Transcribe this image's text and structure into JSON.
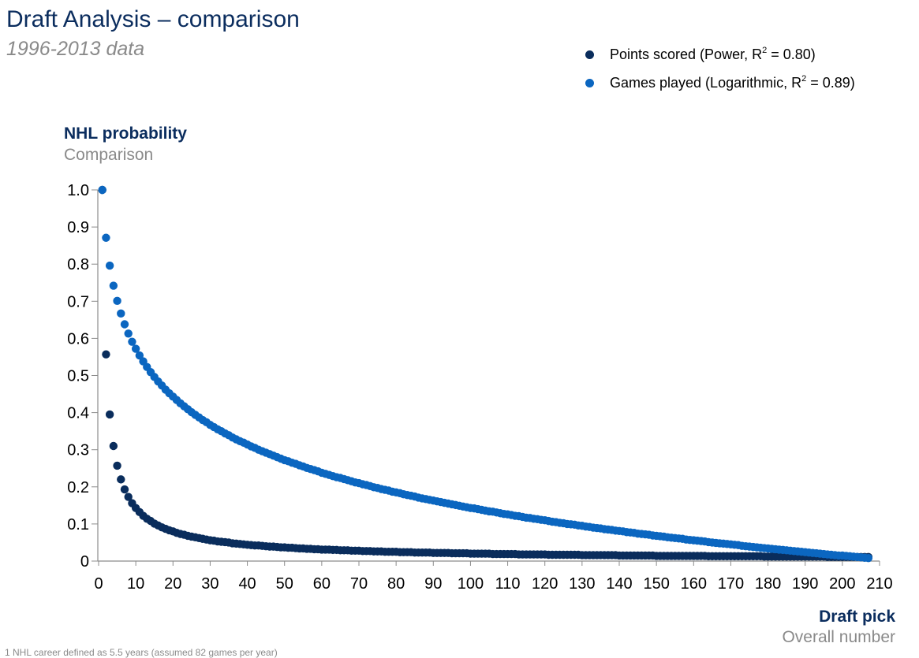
{
  "header": {
    "title": "Draft Analysis – comparison",
    "subtitle": "1996-2013 data"
  },
  "footnote": "1 NHL career defined as 5.5 years (assumed 82 games per year)",
  "colors": {
    "points_scored": "#0a2d5c",
    "games_played": "#0b66c0",
    "title": "#0b2d5e",
    "muted": "#8a8a8a"
  },
  "chart_data": {
    "type": "scatter",
    "title": "Draft Analysis – comparison",
    "subtitle": "1996-2013 data",
    "ylabel": "NHL probability",
    "ylabel_sub": "Comparison",
    "xlabel": "Draft pick",
    "xlabel_sub": "Overall number",
    "xlim": [
      0,
      210
    ],
    "ylim": [
      0,
      1.0
    ],
    "xticks": [
      "0",
      "10",
      "20",
      "30",
      "40",
      "50",
      "60",
      "70",
      "80",
      "90",
      "100",
      "110",
      "120",
      "130",
      "140",
      "150",
      "160",
      "170",
      "180",
      "190",
      "200",
      "210"
    ],
    "yticks": [
      "0",
      "0.1",
      "0.2",
      "0.3",
      "0.4",
      "0.5",
      "0.6",
      "0.7",
      "0.8",
      "0.9",
      "1.0"
    ],
    "grid": false,
    "legend_placement": "top-right",
    "legend": [
      {
        "label": "Points scored (Power, R",
        "sup": "2",
        "tail": " = 0.80)"
      },
      {
        "label": "Games played (Logarithmic, R",
        "sup": "2",
        "tail": " = 0.89)"
      }
    ],
    "x_start": 1,
    "series": [
      {
        "name": "Points scored (Power, R2 = 0.80)",
        "color": "#0a2d5c",
        "values": [
          1.0,
          0.557,
          0.395,
          0.31,
          0.257,
          0.22,
          0.193,
          0.173,
          0.156,
          0.143,
          0.132,
          0.122,
          0.114,
          0.108,
          0.101,
          0.096,
          0.091,
          0.087,
          0.083,
          0.08,
          0.076,
          0.073,
          0.071,
          0.068,
          0.066,
          0.064,
          0.062,
          0.06,
          0.058,
          0.056,
          0.055,
          0.053,
          0.052,
          0.051,
          0.05,
          0.048,
          0.047,
          0.046,
          0.045,
          0.044,
          0.043,
          0.042,
          0.042,
          0.041,
          0.04,
          0.039,
          0.039,
          0.038,
          0.037,
          0.037,
          0.036,
          0.036,
          0.035,
          0.034,
          0.034,
          0.033,
          0.033,
          0.032,
          0.032,
          0.031,
          0.031,
          0.031,
          0.03,
          0.03,
          0.029,
          0.029,
          0.029,
          0.028,
          0.028,
          0.028,
          0.027,
          0.027,
          0.027,
          0.026,
          0.026,
          0.026,
          0.025,
          0.025,
          0.025,
          0.025,
          0.024,
          0.024,
          0.024,
          0.024,
          0.023,
          0.023,
          0.023,
          0.023,
          0.023,
          0.022,
          0.022,
          0.022,
          0.022,
          0.022,
          0.021,
          0.021,
          0.021,
          0.021,
          0.021,
          0.02,
          0.02,
          0.02,
          0.02,
          0.02,
          0.02,
          0.019,
          0.019,
          0.019,
          0.019,
          0.019,
          0.019,
          0.019,
          0.018,
          0.018,
          0.018,
          0.018,
          0.018,
          0.018,
          0.018,
          0.018,
          0.017,
          0.017,
          0.017,
          0.017,
          0.017,
          0.017,
          0.017,
          0.017,
          0.017,
          0.016,
          0.016,
          0.016,
          0.016,
          0.016,
          0.016,
          0.016,
          0.016,
          0.016,
          0.016,
          0.015,
          0.015,
          0.015,
          0.015,
          0.015,
          0.015,
          0.015,
          0.015,
          0.015,
          0.015,
          0.014,
          0.014,
          0.014,
          0.014,
          0.014,
          0.014,
          0.014,
          0.014,
          0.014,
          0.014,
          0.014,
          0.014,
          0.014,
          0.014,
          0.013,
          0.013,
          0.013,
          0.013,
          0.013,
          0.013,
          0.013,
          0.013,
          0.013,
          0.013,
          0.013,
          0.013,
          0.013,
          0.013,
          0.013,
          0.012,
          0.012,
          0.012,
          0.012,
          0.012,
          0.012,
          0.012,
          0.012,
          0.012,
          0.012,
          0.012,
          0.012,
          0.012,
          0.012,
          0.012,
          0.012,
          0.012,
          0.011,
          0.011,
          0.011,
          0.011,
          0.011,
          0.011,
          0.011,
          0.011,
          0.011,
          0.011,
          0.011,
          0.011
        ]
      },
      {
        "name": "Games played (Logarithmic, R2 = 0.89)",
        "color": "#0b66c0",
        "values": [
          1.0,
          0.871,
          0.796,
          0.742,
          0.701,
          0.667,
          0.638,
          0.613,
          0.591,
          0.572,
          0.554,
          0.538,
          0.523,
          0.509,
          0.496,
          0.484,
          0.473,
          0.462,
          0.452,
          0.443,
          0.434,
          0.425,
          0.417,
          0.409,
          0.401,
          0.394,
          0.387,
          0.38,
          0.374,
          0.367,
          0.361,
          0.355,
          0.35,
          0.344,
          0.339,
          0.333,
          0.328,
          0.323,
          0.319,
          0.314,
          0.309,
          0.305,
          0.3,
          0.296,
          0.292,
          0.288,
          0.284,
          0.28,
          0.276,
          0.272,
          0.269,
          0.265,
          0.262,
          0.258,
          0.255,
          0.251,
          0.248,
          0.245,
          0.242,
          0.238,
          0.235,
          0.232,
          0.229,
          0.226,
          0.224,
          0.221,
          0.218,
          0.215,
          0.212,
          0.21,
          0.207,
          0.205,
          0.202,
          0.199,
          0.197,
          0.194,
          0.192,
          0.19,
          0.187,
          0.185,
          0.183,
          0.18,
          0.178,
          0.176,
          0.174,
          0.171,
          0.169,
          0.167,
          0.165,
          0.163,
          0.161,
          0.159,
          0.157,
          0.155,
          0.153,
          0.151,
          0.149,
          0.147,
          0.145,
          0.143,
          0.142,
          0.14,
          0.138,
          0.136,
          0.134,
          0.133,
          0.131,
          0.129,
          0.127,
          0.126,
          0.124,
          0.122,
          0.121,
          0.119,
          0.117,
          0.116,
          0.114,
          0.113,
          0.111,
          0.11,
          0.108,
          0.106,
          0.105,
          0.103,
          0.102,
          0.1,
          0.099,
          0.098,
          0.096,
          0.095,
          0.093,
          0.092,
          0.09,
          0.089,
          0.088,
          0.086,
          0.085,
          0.084,
          0.082,
          0.081,
          0.08,
          0.078,
          0.077,
          0.076,
          0.074,
          0.073,
          0.072,
          0.071,
          0.069,
          0.068,
          0.067,
          0.066,
          0.064,
          0.063,
          0.062,
          0.061,
          0.06,
          0.058,
          0.057,
          0.056,
          0.055,
          0.054,
          0.053,
          0.051,
          0.05,
          0.049,
          0.048,
          0.047,
          0.046,
          0.045,
          0.044,
          0.043,
          0.041,
          0.04,
          0.039,
          0.038,
          0.037,
          0.036,
          0.035,
          0.034,
          0.033,
          0.032,
          0.031,
          0.03,
          0.029,
          0.028,
          0.027,
          0.026,
          0.025,
          0.024,
          0.023,
          0.022,
          0.021,
          0.02,
          0.019,
          0.018,
          0.017,
          0.016,
          0.015,
          0.015,
          0.014,
          0.013,
          0.012,
          0.011,
          0.01,
          0.009,
          0.008
        ]
      }
    ]
  }
}
